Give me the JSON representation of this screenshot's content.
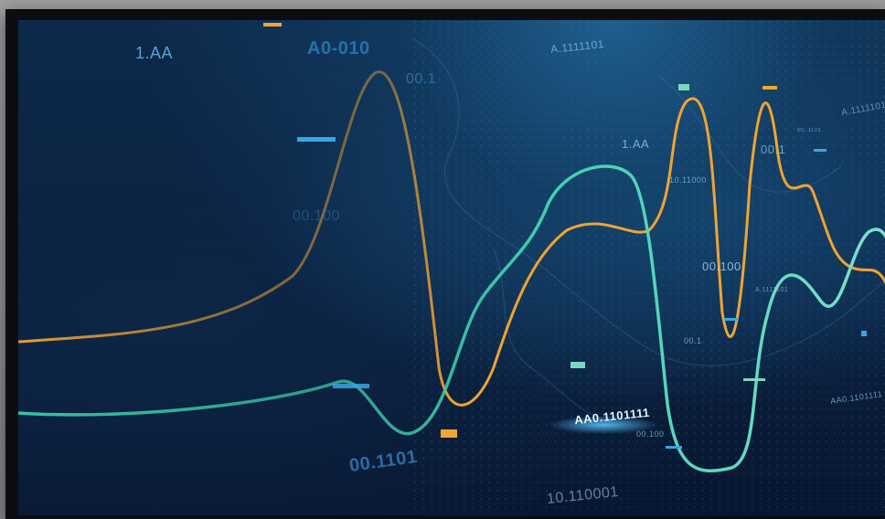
{
  "scene": {
    "colors": {
      "orange_line": "#f0a431",
      "teal_line": "#38c3a4",
      "mint_line": "#7fe0c8",
      "blue_marker": "#39a6e0",
      "mint_marker": "#7ad9bd",
      "orange_marker": "#f2a631"
    },
    "labels": {
      "l1": "1.AA",
      "l2": "A0-010",
      "l3": "00.1",
      "l4": "A.1111101",
      "l5": "00.100",
      "l6": "1.AA",
      "l7": "10.11000",
      "l8": "00.1",
      "l9": "A.1111101",
      "l10": "00.100",
      "l11": "A.1111101",
      "l12": "00.1",
      "l13": "AA0.1101111",
      "l14": "00.100",
      "l15": "00.1101",
      "l16": "10.110001",
      "l17": "AA0.1101111",
      "l18": "BC.1101"
    }
  }
}
